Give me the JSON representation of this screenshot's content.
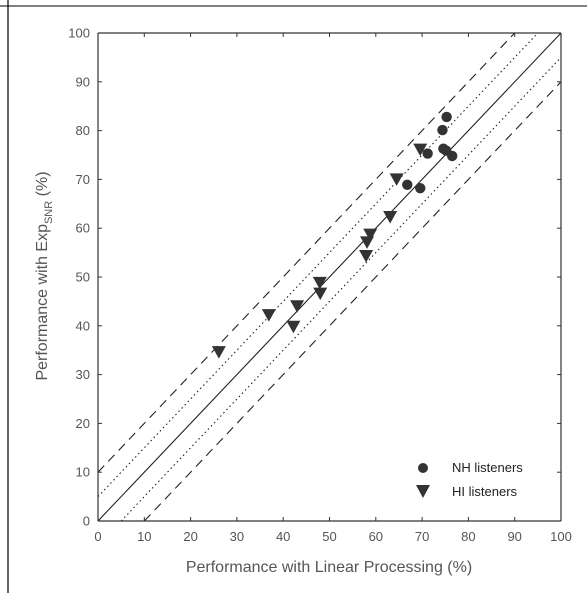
{
  "chart_data": {
    "type": "scatter",
    "xlabel": "Performance with Linear Processing (%)",
    "ylabel_parts": {
      "main": "Performance with Exp",
      "sub": "SNR",
      "suffix": " (%)"
    },
    "xlim": [
      0,
      100
    ],
    "ylim": [
      0,
      100
    ],
    "xticks": [
      "0",
      "10",
      "20",
      "30",
      "40",
      "50",
      "60",
      "70",
      "80",
      "90",
      "100"
    ],
    "yticks": [
      "0",
      "10",
      "20",
      "30",
      "40",
      "50",
      "60",
      "70",
      "80",
      "90",
      "100"
    ],
    "grid": false,
    "legend_position": "bottom-right",
    "reference_lines": [
      {
        "offset": 0,
        "style": "solid"
      },
      {
        "offset": 5,
        "style": "dotted"
      },
      {
        "offset": -5,
        "style": "dotted"
      },
      {
        "offset": 10,
        "style": "dashed"
      },
      {
        "offset": -10,
        "style": "dashed"
      }
    ],
    "series": [
      {
        "name": "NH listeners",
        "marker": "circle",
        "color": "#333333",
        "points": [
          {
            "x": 75.3,
            "y": 82.8
          },
          {
            "x": 74.4,
            "y": 80.1
          },
          {
            "x": 74.6,
            "y": 76.3
          },
          {
            "x": 75.2,
            "y": 75.9
          },
          {
            "x": 71.2,
            "y": 75.3
          },
          {
            "x": 76.5,
            "y": 74.8
          },
          {
            "x": 66.8,
            "y": 68.9
          },
          {
            "x": 69.6,
            "y": 68.2
          }
        ]
      },
      {
        "name": "HI listeners",
        "marker": "triangle-down",
        "color": "#333333",
        "points": [
          {
            "x": 69.6,
            "y": 76.3
          },
          {
            "x": 64.5,
            "y": 70.2
          },
          {
            "x": 63.1,
            "y": 62.5
          },
          {
            "x": 58.8,
            "y": 58.9
          },
          {
            "x": 58.1,
            "y": 57.3
          },
          {
            "x": 57.9,
            "y": 54.5
          },
          {
            "x": 47.9,
            "y": 49.0
          },
          {
            "x": 48.0,
            "y": 46.8
          },
          {
            "x": 43.0,
            "y": 44.2
          },
          {
            "x": 36.9,
            "y": 42.4
          },
          {
            "x": 42.2,
            "y": 40.0
          },
          {
            "x": 26.1,
            "y": 34.8
          }
        ]
      }
    ]
  }
}
